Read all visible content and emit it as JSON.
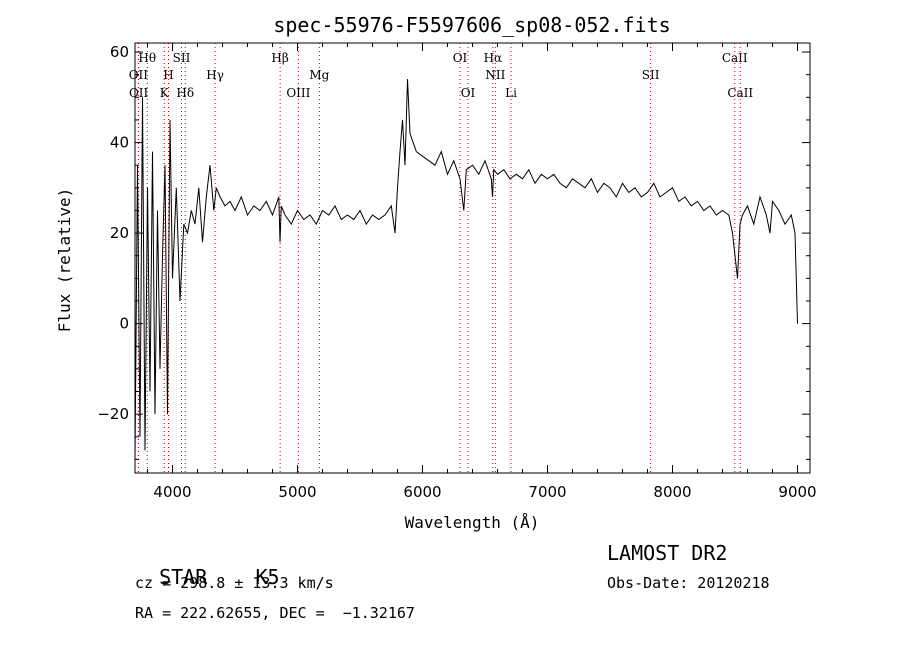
{
  "chart_data": {
    "type": "line",
    "title": "spec-55976-F5597606_sp08-052.fits",
    "xlabel": "Wavelength (Å)",
    "ylabel": "Flux (relative)",
    "xlim": [
      3700,
      9100
    ],
    "ylim": [
      -33,
      62
    ],
    "xticks": [
      "4000",
      "5000",
      "6000",
      "7000",
      "8000",
      "9000"
    ],
    "yticks": [
      "−20",
      "0",
      "20",
      "40",
      "60"
    ],
    "grid": false,
    "series": [
      {
        "color": "#000000",
        "x": [
          3700,
          3720,
          3740,
          3760,
          3780,
          3800,
          3820,
          3840,
          3860,
          3880,
          3900,
          3920,
          3940,
          3960,
          3980,
          4000,
          4030,
          4060,
          4090,
          4120,
          4150,
          4180,
          4210,
          4240,
          4270,
          4300,
          4330,
          4350,
          4380,
          4420,
          4460,
          4500,
          4550,
          4600,
          4650,
          4700,
          4750,
          4800,
          4850,
          4860,
          4870,
          4900,
          4950,
          5000,
          5050,
          5100,
          5150,
          5200,
          5250,
          5300,
          5350,
          5400,
          5450,
          5500,
          5550,
          5600,
          5650,
          5700,
          5750,
          5780,
          5800,
          5820,
          5840,
          5860,
          5880,
          5900,
          5950,
          6000,
          6050,
          6100,
          6150,
          6200,
          6250,
          6300,
          6330,
          6350,
          6400,
          6450,
          6500,
          6550,
          6560,
          6570,
          6600,
          6650,
          6700,
          6750,
          6800,
          6850,
          6900,
          6950,
          7000,
          7050,
          7100,
          7150,
          7200,
          7250,
          7300,
          7350,
          7400,
          7450,
          7500,
          7550,
          7600,
          7650,
          7700,
          7750,
          7800,
          7850,
          7900,
          7950,
          8000,
          8050,
          8100,
          8150,
          8200,
          8250,
          8300,
          8350,
          8400,
          8450,
          8480,
          8500,
          8520,
          8540,
          8560,
          8600,
          8650,
          8700,
          8750,
          8780,
          8800,
          8850,
          8900,
          8950,
          8980,
          9000
        ],
        "y": [
          -30,
          35,
          -25,
          50,
          -28,
          30,
          -15,
          38,
          -20,
          25,
          -10,
          15,
          35,
          -20,
          45,
          10,
          30,
          5,
          22,
          20,
          25,
          22,
          30,
          18,
          28,
          35,
          25,
          30,
          28,
          26,
          27,
          25,
          28,
          24,
          26,
          25,
          27,
          24,
          28,
          18,
          26,
          24,
          22,
          25,
          23,
          24,
          22,
          25,
          24,
          26,
          23,
          24,
          23,
          25,
          22,
          24,
          23,
          24,
          26,
          20,
          30,
          38,
          45,
          35,
          54,
          42,
          38,
          37,
          36,
          35,
          38,
          33,
          36,
          32,
          25,
          34,
          35,
          33,
          36,
          32,
          28,
          34,
          33,
          34,
          32,
          33,
          32,
          34,
          31,
          33,
          32,
          33,
          31,
          30,
          32,
          31,
          30,
          32,
          29,
          31,
          30,
          28,
          31,
          29,
          30,
          28,
          29,
          31,
          28,
          29,
          30,
          27,
          28,
          26,
          27,
          25,
          26,
          24,
          25,
          24,
          20,
          15,
          10,
          22,
          24,
          26,
          22,
          28,
          24,
          20,
          27,
          25,
          22,
          24,
          20,
          0
        ]
      }
    ],
    "lines": [
      {
        "label": "Hθ",
        "x": 3798,
        "row": 0
      },
      {
        "label": "OII",
        "x": 3727,
        "row": 1
      },
      {
        "label": "OII",
        "x": 3729,
        "row": 2
      },
      {
        "label": "SII",
        "x": 4072,
        "row": 0
      },
      {
        "label": "H",
        "x": 3968,
        "row": 1
      },
      {
        "label": "K",
        "x": 3934,
        "row": 2
      },
      {
        "label": "Hδ",
        "x": 4102,
        "row": 2
      },
      {
        "label": "Hγ",
        "x": 4341,
        "row": 1
      },
      {
        "label": "Hβ",
        "x": 4861,
        "row": 0
      },
      {
        "label": "Mg",
        "x": 5175,
        "row": 1
      },
      {
        "label": "OIII",
        "x": 5007,
        "row": 2
      },
      {
        "label": "OI",
        "x": 6300,
        "row": 0
      },
      {
        "label": "OI",
        "x": 6364,
        "row": 2
      },
      {
        "label": "Hα",
        "x": 6563,
        "row": 0
      },
      {
        "label": "NII",
        "x": 6583,
        "row": 1
      },
      {
        "label": "Li",
        "x": 6708,
        "row": 2
      },
      {
        "label": "SII",
        "x": 7825,
        "row": 1
      },
      {
        "label": "CaII",
        "x": 8498,
        "row": 0
      },
      {
        "label": "CaII",
        "x": 8542,
        "row": 2
      }
    ]
  },
  "info": {
    "class": "STAR",
    "subclass": "K5",
    "survey": "LAMOST DR2",
    "cz": "cz = 298.8 ± 13.3 km/s",
    "obsdate": "Obs-Date: 20120218",
    "radec": "RA = 222.62655, DEC =  −1.32167"
  }
}
